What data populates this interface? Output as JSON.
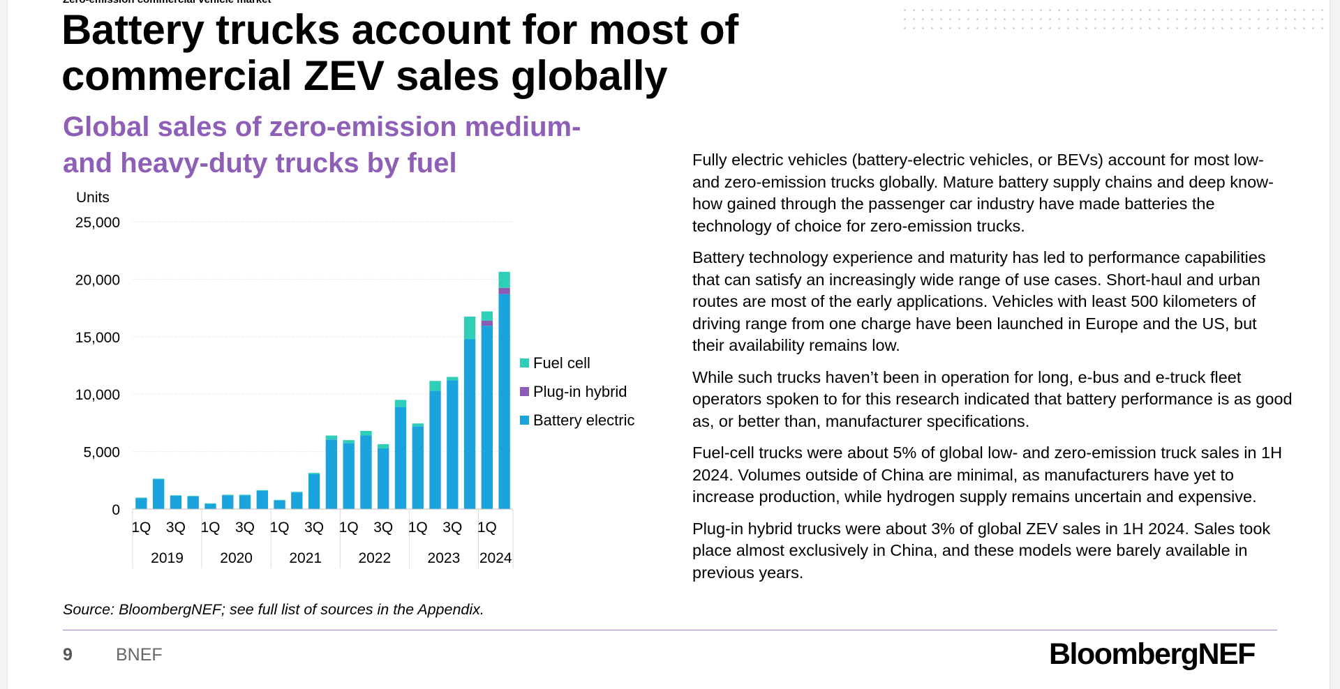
{
  "page": {
    "section_label": "Zero-emission commercial vehicle market",
    "title_lines": [
      "Battery trucks account for most of",
      "commercial ZEV sales globally"
    ],
    "subtitle_lines": [
      "Global sales of zero-emission medium-",
      "and heavy-duty trucks by fuel"
    ],
    "paragraphs": [
      "Fully electric vehicles (battery-electric vehicles, or BEVs) account for most low- and zero-emission trucks globally. Mature battery supply chains and deep know-how gained through the passenger car industry have made batteries the technology of choice for zero-emission trucks.",
      "Battery technology experience and maturity has led to performance capabilities that can satisfy an increasingly wide range of use cases. Short-haul and urban routes are most of the early applications. Vehicles with least 500 kilometers of driving range from one charge have been launched in Europe and the US, but their availability remains low.",
      "While such trucks haven’t been in operation for long, e-bus and e-truck fleet operators spoken to for this research indicated that battery performance is as good as, or better than, manufacturer specifications.",
      "Fuel-cell trucks were about 5% of global low- and zero-emission truck sales in 1H 2024. Volumes outside of China are minimal, as manufacturers have yet to increase production, while hydrogen supply remains uncertain and expensive.",
      "Plug-in hybrid trucks were about 3% of global ZEV sales in 1H 2024. Sales took place almost exclusively in China, and these models were barely available in previous years."
    ],
    "source": "Source: BloombergNEF; see full list of sources in the Appendix.",
    "page_number": "9",
    "footer_name": "BNEF",
    "logo": "BloombergNEF"
  },
  "chart_data": {
    "type": "bar",
    "stacked": true,
    "ylabel": "Units",
    "ylim": [
      0,
      25000
    ],
    "yticks": [
      0,
      5000,
      10000,
      15000,
      20000,
      25000
    ],
    "ytick_labels": [
      "0",
      "5,000",
      "10,000",
      "15,000",
      "20,000",
      "25,000"
    ],
    "grid": true,
    "legend_position": "right",
    "categories": [
      "1Q 2019",
      "2Q 2019",
      "3Q 2019",
      "4Q 2019",
      "1Q 2020",
      "2Q 2020",
      "3Q 2020",
      "4Q 2020",
      "1Q 2021",
      "2Q 2021",
      "3Q 2021",
      "4Q 2021",
      "1Q 2022",
      "2Q 2022",
      "3Q 2022",
      "4Q 2022",
      "1Q 2023",
      "2Q 2023",
      "3Q 2023",
      "4Q 2023",
      "1Q 2024",
      "2Q 2024"
    ],
    "x_tick_labels": [
      "1Q",
      "",
      "3Q",
      "",
      "1Q",
      "",
      "3Q",
      "",
      "1Q",
      "",
      "3Q",
      "",
      "1Q",
      "",
      "3Q",
      "",
      "1Q",
      "",
      "3Q",
      "",
      "1Q",
      ""
    ],
    "year_labels": [
      "2019",
      "2020",
      "2021",
      "2022",
      "2023",
      "2024"
    ],
    "series": [
      {
        "name": "Battery electric",
        "color": "#1aa3dc",
        "values": [
          950,
          2600,
          1150,
          1100,
          450,
          1200,
          1200,
          1600,
          750,
          1450,
          3050,
          6050,
          5750,
          6400,
          5300,
          8900,
          7200,
          10300,
          11200,
          14800,
          15950,
          18700
        ]
      },
      {
        "name": "Plug-in hybrid",
        "color": "#8a5cb5",
        "values": [
          0,
          0,
          0,
          0,
          0,
          0,
          0,
          0,
          0,
          0,
          0,
          0,
          0,
          0,
          0,
          0,
          0,
          0,
          0,
          0,
          450,
          550
        ]
      },
      {
        "name": "Fuel cell",
        "color": "#2ecfb6",
        "values": [
          50,
          50,
          50,
          50,
          50,
          50,
          50,
          50,
          50,
          50,
          100,
          350,
          250,
          400,
          350,
          600,
          250,
          850,
          300,
          1950,
          800,
          1400
        ]
      }
    ]
  }
}
